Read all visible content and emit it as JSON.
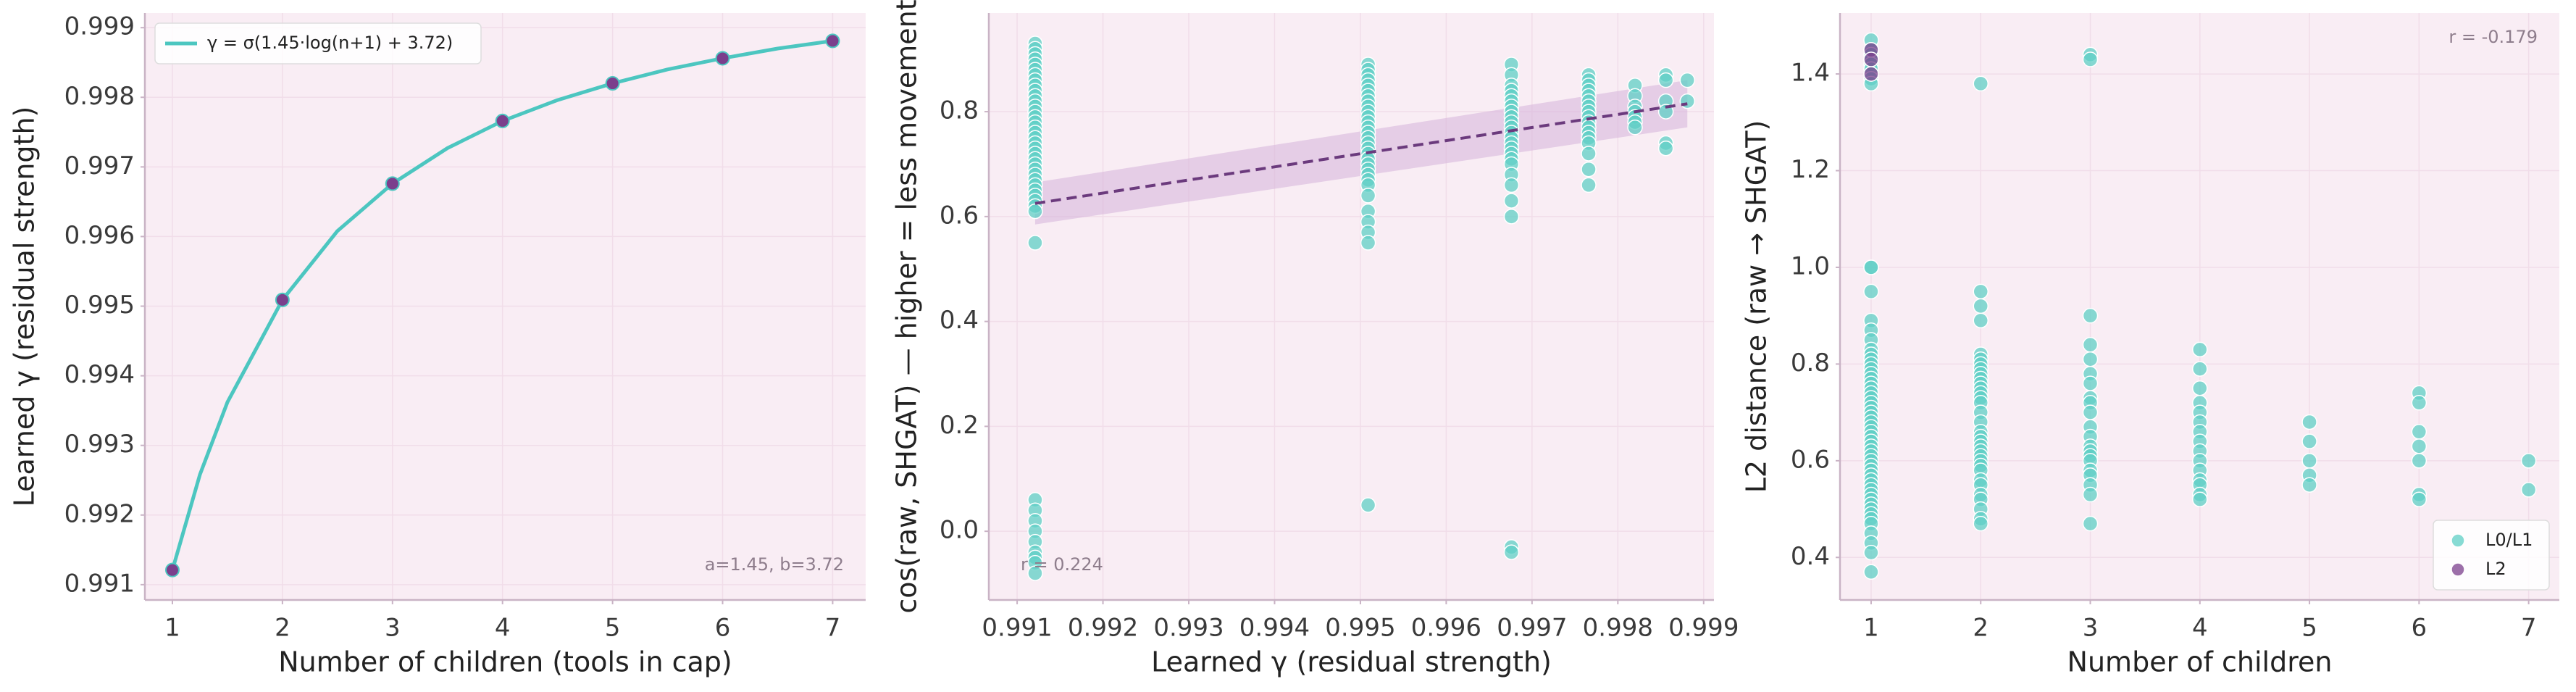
{
  "chart_data": [
    {
      "type": "line",
      "xlabel": "Number of children (tools in cap)",
      "ylabel": "Learned γ (residual strength)",
      "xlim": [
        0.75,
        7.3
      ],
      "ylim": [
        0.99078,
        0.99921
      ],
      "xticks": [
        1,
        2,
        3,
        4,
        5,
        6,
        7
      ],
      "yticks": [
        0.991,
        0.992,
        0.993,
        0.994,
        0.995,
        0.996,
        0.997,
        0.998,
        0.999
      ],
      "grid": true,
      "legend": "upper left",
      "annotation": "a=1.45, b=3.72",
      "series": [
        {
          "name": "γ = σ(1.45·log(n+1) + 3.72)",
          "kind": "line",
          "color": "#4cc6c0",
          "x": [
            1,
            1.25,
            1.5,
            2,
            2.5,
            3,
            3.5,
            4,
            4.5,
            5,
            5.5,
            6,
            6.5,
            7
          ],
          "values": [
            0.99121,
            0.99258,
            0.99362,
            0.99509,
            0.99608,
            0.99676,
            0.99727,
            0.99766,
            0.99796,
            0.9982,
            0.9984,
            0.99856,
            0.9987,
            0.99881
          ]
        },
        {
          "kind": "marker",
          "color": "#7b3f8c",
          "x": [
            1,
            2,
            3,
            4,
            5,
            6,
            7
          ],
          "values": [
            0.99121,
            0.99509,
            0.99676,
            0.99766,
            0.9982,
            0.99856,
            0.99881
          ]
        }
      ]
    },
    {
      "type": "scatter",
      "xlabel": "Learned γ (residual strength)",
      "ylabel": "cos(raw, SHGAT) — higher = less movement",
      "xlim": [
        0.99067,
        0.99912
      ],
      "ylim": [
        -0.131,
        0.988
      ],
      "xticks": [
        0.991,
        0.992,
        0.993,
        0.994,
        0.995,
        0.996,
        0.997,
        0.998,
        0.999
      ],
      "yticks": [
        {
          "value": 0,
          "label": "0.0"
        },
        0.2,
        0.4,
        0.6,
        0.8
      ],
      "grid": true,
      "annotation": "r = 0.224",
      "series": [
        {
          "color": "#5fcfc6",
          "groups": [
            {
              "x": 0.99121,
              "values": [
                0.93,
                0.92,
                0.91,
                0.9,
                0.89,
                0.88,
                0.87,
                0.86,
                0.85,
                0.84,
                0.83,
                0.82,
                0.81,
                0.8,
                0.79,
                0.78,
                0.77,
                0.76,
                0.75,
                0.74,
                0.73,
                0.72,
                0.71,
                0.7,
                0.69,
                0.68,
                0.67,
                0.66,
                0.65,
                0.64,
                0.63,
                0.62,
                0.61,
                0.55,
                0.06,
                0.04,
                0.02,
                0,
                -0.02,
                -0.04,
                -0.05,
                -0.06,
                -0.08
              ]
            },
            {
              "x": 0.99509,
              "values": [
                0.89,
                0.88,
                0.87,
                0.86,
                0.85,
                0.84,
                0.83,
                0.82,
                0.81,
                0.8,
                0.79,
                0.78,
                0.77,
                0.76,
                0.75,
                0.74,
                0.73,
                0.72,
                0.71,
                0.7,
                0.69,
                0.68,
                0.67,
                0.66,
                0.64,
                0.61,
                0.59,
                0.57,
                0.55,
                0.05
              ]
            },
            {
              "x": 0.99676,
              "values": [
                0.89,
                0.87,
                0.85,
                0.84,
                0.83,
                0.82,
                0.81,
                0.8,
                0.79,
                0.78,
                0.77,
                0.76,
                0.75,
                0.74,
                0.73,
                0.72,
                0.71,
                0.7,
                0.68,
                0.66,
                0.63,
                0.6,
                -0.03,
                -0.04
              ]
            },
            {
              "x": 0.99766,
              "values": [
                0.87,
                0.86,
                0.85,
                0.84,
                0.83,
                0.82,
                0.81,
                0.8,
                0.79,
                0.78,
                0.77,
                0.76,
                0.75,
                0.74,
                0.72,
                0.69,
                0.66
              ]
            },
            {
              "x": 0.9982,
              "values": [
                0.85,
                0.83,
                0.81,
                0.8,
                0.79,
                0.78,
                0.77
              ]
            },
            {
              "x": 0.99856,
              "values": [
                0.87,
                0.86,
                0.82,
                0.8,
                0.74,
                0.73
              ]
            },
            {
              "x": 0.99881,
              "values": [
                0.86,
                0.82
              ]
            }
          ]
        }
      ],
      "fit": {
        "color": "#6b3a7d",
        "band_color": "#d6b3da",
        "x": [
          0.99121,
          0.99881
        ],
        "values": [
          0.625,
          0.815
        ],
        "lower": [
          0.585,
          0.77
        ],
        "upper": [
          0.665,
          0.86
        ]
      }
    },
    {
      "type": "scatter",
      "xlabel": "Number of children",
      "ylabel": "L2 distance (raw → SHGAT)",
      "xlim": [
        0.716,
        7.28
      ],
      "ylim": [
        0.312,
        1.526
      ],
      "xticks": [
        1,
        2,
        3,
        4,
        5,
        6,
        7
      ],
      "yticks": [
        0.4,
        0.6,
        0.8,
        {
          "value": 1,
          "label": "1.0"
        },
        1.2,
        1.4
      ],
      "grid": true,
      "legend": "lower right",
      "annotation": "r = -0.179",
      "series": [
        {
          "name": "L0/L1",
          "color": "#5fcfc6",
          "groups": [
            {
              "x": 1,
              "values": [
                1.47,
                1.45,
                1.44,
                1.43,
                1.42,
                1.41,
                1.39,
                1.38,
                1,
                1,
                0.95,
                0.89,
                0.87,
                0.85,
                0.83,
                0.82,
                0.81,
                0.8,
                0.79,
                0.78,
                0.77,
                0.76,
                0.75,
                0.74,
                0.73,
                0.72,
                0.71,
                0.7,
                0.69,
                0.68,
                0.67,
                0.66,
                0.65,
                0.64,
                0.63,
                0.62,
                0.61,
                0.6,
                0.59,
                0.58,
                0.57,
                0.56,
                0.55,
                0.54,
                0.53,
                0.52,
                0.51,
                0.5,
                0.49,
                0.48,
                0.47,
                0.45,
                0.43,
                0.41,
                0.37
              ]
            },
            {
              "x": 2,
              "values": [
                1.38,
                0.95,
                0.92,
                0.89,
                0.82,
                0.81,
                0.8,
                0.79,
                0.78,
                0.77,
                0.76,
                0.75,
                0.74,
                0.73,
                0.72,
                0.7,
                0.68,
                0.66,
                0.65,
                0.64,
                0.63,
                0.62,
                0.61,
                0.6,
                0.59,
                0.58,
                0.56,
                0.55,
                0.53,
                0.52,
                0.5,
                0.48,
                0.47
              ]
            },
            {
              "x": 3,
              "values": [
                1.44,
                1.43,
                0.9,
                0.84,
                0.81,
                0.78,
                0.76,
                0.73,
                0.72,
                0.7,
                0.67,
                0.65,
                0.63,
                0.62,
                0.61,
                0.6,
                0.58,
                0.57,
                0.55,
                0.53,
                0.47
              ]
            },
            {
              "x": 4,
              "values": [
                0.83,
                0.79,
                0.75,
                0.72,
                0.7,
                0.68,
                0.66,
                0.64,
                0.62,
                0.6,
                0.58,
                0.56,
                0.55,
                0.53,
                0.52
              ]
            },
            {
              "x": 5,
              "values": [
                0.68,
                0.64,
                0.6,
                0.57,
                0.55
              ]
            },
            {
              "x": 6,
              "values": [
                0.74,
                0.72,
                0.66,
                0.63,
                0.6,
                0.53,
                0.52
              ]
            },
            {
              "x": 7,
              "values": [
                0.6,
                0.54
              ]
            }
          ]
        },
        {
          "name": "L2",
          "color": "#7b3f8c",
          "groups": [
            {
              "x": 1,
              "values": [
                1.45,
                1.43,
                1.4
              ]
            }
          ]
        }
      ]
    }
  ]
}
